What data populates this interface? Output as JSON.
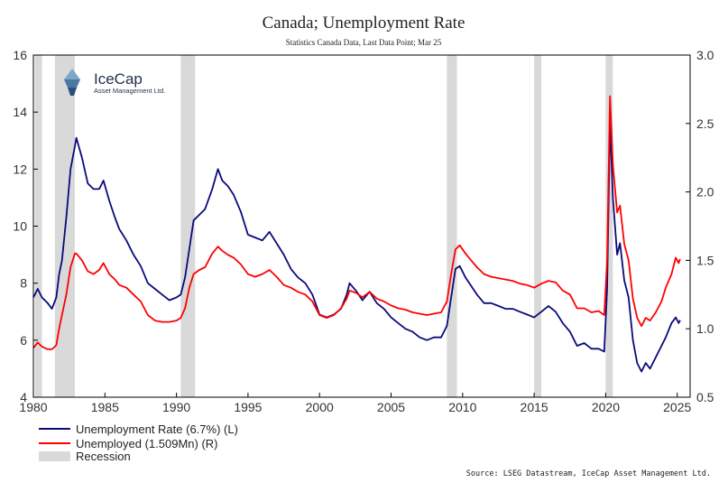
{
  "chart_data": {
    "type": "line",
    "title": "Canada; Unemployment Rate",
    "subtitle": "Statistics Canada Data, Last Data Point; Mar 25",
    "source": "Source: LSEG Datastream, IceCap Asset Management Ltd.",
    "logo": {
      "name": "IceCap",
      "tagline": "Asset Management Ltd."
    },
    "x_ticks": [
      "1980",
      "1985",
      "1990",
      "1995",
      "2000",
      "2005",
      "2010",
      "2015",
      "2020",
      "2025"
    ],
    "xlim": [
      1980,
      2025.9
    ],
    "y_left": {
      "lim": [
        4,
        16
      ],
      "ticks": [
        "4",
        "6",
        "8",
        "10",
        "12",
        "14",
        "16"
      ]
    },
    "y_right": {
      "lim": [
        0.5,
        3.0
      ],
      "ticks": [
        "0.5",
        "1.0",
        "1.5",
        "2.0",
        "2.5",
        "3.0"
      ]
    },
    "recessions": [
      [
        1980.1,
        1980.6
      ],
      [
        1981.5,
        1982.9
      ],
      [
        1990.3,
        1991.3
      ],
      [
        2008.9,
        2009.6
      ],
      [
        2015.0,
        2015.5
      ],
      [
        2020.0,
        2020.5
      ]
    ],
    "legend": [
      {
        "label": "Unemployment Rate (6.7%) (L)",
        "color": "#0a0a7a"
      },
      {
        "label": "Unemployed (1.509Mn) (R)",
        "color": "#ff0000"
      },
      {
        "label": "Recession",
        "color": "#d9d9d9"
      }
    ],
    "series": [
      {
        "name": "Unemployment Rate (6.7%) (L)",
        "axis": "left",
        "color": "#0a0a7a",
        "points": [
          [
            1980.0,
            7.5
          ],
          [
            1980.3,
            7.8
          ],
          [
            1980.6,
            7.5
          ],
          [
            1981.0,
            7.3
          ],
          [
            1981.3,
            7.1
          ],
          [
            1981.6,
            7.5
          ],
          [
            1981.8,
            8.3
          ],
          [
            1982.0,
            8.8
          ],
          [
            1982.3,
            10.3
          ],
          [
            1982.6,
            12.0
          ],
          [
            1982.9,
            12.8
          ],
          [
            1983.0,
            13.1
          ],
          [
            1983.4,
            12.4
          ],
          [
            1983.8,
            11.5
          ],
          [
            1984.2,
            11.3
          ],
          [
            1984.6,
            11.3
          ],
          [
            1984.9,
            11.6
          ],
          [
            1985.3,
            10.9
          ],
          [
            1985.7,
            10.3
          ],
          [
            1986.0,
            9.9
          ],
          [
            1986.5,
            9.5
          ],
          [
            1987.0,
            9.0
          ],
          [
            1987.5,
            8.6
          ],
          [
            1988.0,
            8.0
          ],
          [
            1988.5,
            7.8
          ],
          [
            1989.0,
            7.6
          ],
          [
            1989.5,
            7.4
          ],
          [
            1990.0,
            7.5
          ],
          [
            1990.3,
            7.6
          ],
          [
            1990.6,
            8.2
          ],
          [
            1990.9,
            9.2
          ],
          [
            1991.2,
            10.2
          ],
          [
            1991.6,
            10.4
          ],
          [
            1992.0,
            10.6
          ],
          [
            1992.5,
            11.3
          ],
          [
            1992.9,
            12.0
          ],
          [
            1993.2,
            11.6
          ],
          [
            1993.6,
            11.4
          ],
          [
            1994.0,
            11.1
          ],
          [
            1994.5,
            10.5
          ],
          [
            1995.0,
            9.7
          ],
          [
            1995.5,
            9.6
          ],
          [
            1996.0,
            9.5
          ],
          [
            1996.5,
            9.8
          ],
          [
            1997.0,
            9.4
          ],
          [
            1997.5,
            9.0
          ],
          [
            1998.0,
            8.5
          ],
          [
            1998.5,
            8.2
          ],
          [
            1999.0,
            8.0
          ],
          [
            1999.5,
            7.6
          ],
          [
            2000.0,
            6.9
          ],
          [
            2000.5,
            6.8
          ],
          [
            2001.0,
            6.9
          ],
          [
            2001.5,
            7.1
          ],
          [
            2001.9,
            7.6
          ],
          [
            2002.1,
            8.0
          ],
          [
            2002.6,
            7.7
          ],
          [
            2003.0,
            7.4
          ],
          [
            2003.5,
            7.7
          ],
          [
            2004.0,
            7.3
          ],
          [
            2004.5,
            7.1
          ],
          [
            2005.0,
            6.8
          ],
          [
            2005.5,
            6.6
          ],
          [
            2006.0,
            6.4
          ],
          [
            2006.5,
            6.3
          ],
          [
            2007.0,
            6.1
          ],
          [
            2007.5,
            6.0
          ],
          [
            2008.0,
            6.1
          ],
          [
            2008.5,
            6.1
          ],
          [
            2008.9,
            6.5
          ],
          [
            2009.2,
            7.5
          ],
          [
            2009.5,
            8.5
          ],
          [
            2009.8,
            8.6
          ],
          [
            2010.2,
            8.2
          ],
          [
            2010.6,
            7.9
          ],
          [
            2011.0,
            7.6
          ],
          [
            2011.5,
            7.3
          ],
          [
            2012.0,
            7.3
          ],
          [
            2012.5,
            7.2
          ],
          [
            2013.0,
            7.1
          ],
          [
            2013.5,
            7.1
          ],
          [
            2014.0,
            7.0
          ],
          [
            2014.5,
            6.9
          ],
          [
            2015.0,
            6.8
          ],
          [
            2015.5,
            7.0
          ],
          [
            2016.0,
            7.2
          ],
          [
            2016.5,
            7.0
          ],
          [
            2017.0,
            6.6
          ],
          [
            2017.5,
            6.3
          ],
          [
            2018.0,
            5.8
          ],
          [
            2018.5,
            5.9
          ],
          [
            2019.0,
            5.7
          ],
          [
            2019.5,
            5.7
          ],
          [
            2019.9,
            5.6
          ],
          [
            2020.1,
            7.8
          ],
          [
            2020.3,
            13.7
          ],
          [
            2020.5,
            11.0
          ],
          [
            2020.8,
            9.0
          ],
          [
            2021.0,
            9.4
          ],
          [
            2021.3,
            8.1
          ],
          [
            2021.6,
            7.5
          ],
          [
            2021.9,
            6.0
          ],
          [
            2022.2,
            5.2
          ],
          [
            2022.5,
            4.9
          ],
          [
            2022.8,
            5.2
          ],
          [
            2023.1,
            5.0
          ],
          [
            2023.5,
            5.4
          ],
          [
            2023.9,
            5.8
          ],
          [
            2024.2,
            6.1
          ],
          [
            2024.6,
            6.6
          ],
          [
            2024.9,
            6.8
          ],
          [
            2025.1,
            6.6
          ],
          [
            2025.2,
            6.7
          ]
        ]
      },
      {
        "name": "Unemployed (1.509Mn) (R)",
        "axis": "right",
        "color": "#ff0000",
        "points": [
          [
            1980.0,
            0.86
          ],
          [
            1980.3,
            0.9
          ],
          [
            1980.6,
            0.87
          ],
          [
            1981.0,
            0.85
          ],
          [
            1981.3,
            0.85
          ],
          [
            1981.6,
            0.88
          ],
          [
            1981.8,
            1.0
          ],
          [
            1982.0,
            1.1
          ],
          [
            1982.3,
            1.25
          ],
          [
            1982.6,
            1.45
          ],
          [
            1982.9,
            1.55
          ],
          [
            1983.0,
            1.55
          ],
          [
            1983.4,
            1.5
          ],
          [
            1983.8,
            1.42
          ],
          [
            1984.2,
            1.4
          ],
          [
            1984.6,
            1.43
          ],
          [
            1984.9,
            1.48
          ],
          [
            1985.3,
            1.4
          ],
          [
            1985.7,
            1.36
          ],
          [
            1986.0,
            1.32
          ],
          [
            1986.5,
            1.3
          ],
          [
            1987.0,
            1.25
          ],
          [
            1987.5,
            1.2
          ],
          [
            1988.0,
            1.1
          ],
          [
            1988.5,
            1.06
          ],
          [
            1989.0,
            1.05
          ],
          [
            1989.5,
            1.05
          ],
          [
            1990.0,
            1.06
          ],
          [
            1990.3,
            1.08
          ],
          [
            1990.6,
            1.15
          ],
          [
            1990.9,
            1.3
          ],
          [
            1991.2,
            1.4
          ],
          [
            1991.6,
            1.43
          ],
          [
            1992.0,
            1.45
          ],
          [
            1992.5,
            1.55
          ],
          [
            1992.9,
            1.6
          ],
          [
            1993.2,
            1.57
          ],
          [
            1993.6,
            1.54
          ],
          [
            1994.0,
            1.52
          ],
          [
            1994.5,
            1.47
          ],
          [
            1995.0,
            1.4
          ],
          [
            1995.5,
            1.38
          ],
          [
            1996.0,
            1.4
          ],
          [
            1996.5,
            1.43
          ],
          [
            1997.0,
            1.38
          ],
          [
            1997.5,
            1.32
          ],
          [
            1998.0,
            1.3
          ],
          [
            1998.5,
            1.27
          ],
          [
            1999.0,
            1.25
          ],
          [
            1999.5,
            1.2
          ],
          [
            2000.0,
            1.1
          ],
          [
            2000.5,
            1.08
          ],
          [
            2001.0,
            1.1
          ],
          [
            2001.5,
            1.15
          ],
          [
            2001.9,
            1.22
          ],
          [
            2002.1,
            1.28
          ],
          [
            2002.6,
            1.26
          ],
          [
            2003.0,
            1.23
          ],
          [
            2003.5,
            1.27
          ],
          [
            2004.0,
            1.22
          ],
          [
            2004.5,
            1.2
          ],
          [
            2005.0,
            1.17
          ],
          [
            2005.5,
            1.15
          ],
          [
            2006.0,
            1.14
          ],
          [
            2006.5,
            1.12
          ],
          [
            2007.0,
            1.11
          ],
          [
            2007.5,
            1.1
          ],
          [
            2008.0,
            1.11
          ],
          [
            2008.5,
            1.12
          ],
          [
            2008.9,
            1.2
          ],
          [
            2009.2,
            1.4
          ],
          [
            2009.5,
            1.58
          ],
          [
            2009.8,
            1.61
          ],
          [
            2010.2,
            1.55
          ],
          [
            2010.6,
            1.5
          ],
          [
            2011.0,
            1.45
          ],
          [
            2011.5,
            1.4
          ],
          [
            2012.0,
            1.38
          ],
          [
            2012.5,
            1.37
          ],
          [
            2013.0,
            1.36
          ],
          [
            2013.5,
            1.35
          ],
          [
            2014.0,
            1.33
          ],
          [
            2014.5,
            1.32
          ],
          [
            2015.0,
            1.3
          ],
          [
            2015.5,
            1.33
          ],
          [
            2016.0,
            1.35
          ],
          [
            2016.5,
            1.34
          ],
          [
            2017.0,
            1.28
          ],
          [
            2017.5,
            1.25
          ],
          [
            2018.0,
            1.15
          ],
          [
            2018.5,
            1.15
          ],
          [
            2019.0,
            1.12
          ],
          [
            2019.5,
            1.13
          ],
          [
            2019.9,
            1.1
          ],
          [
            2020.1,
            1.5
          ],
          [
            2020.3,
            2.7
          ],
          [
            2020.5,
            2.2
          ],
          [
            2020.8,
            1.85
          ],
          [
            2021.0,
            1.9
          ],
          [
            2021.3,
            1.62
          ],
          [
            2021.6,
            1.5
          ],
          [
            2021.9,
            1.22
          ],
          [
            2022.2,
            1.08
          ],
          [
            2022.5,
            1.02
          ],
          [
            2022.8,
            1.08
          ],
          [
            2023.1,
            1.06
          ],
          [
            2023.5,
            1.12
          ],
          [
            2023.9,
            1.2
          ],
          [
            2024.2,
            1.3
          ],
          [
            2024.6,
            1.4
          ],
          [
            2024.9,
            1.52
          ],
          [
            2025.1,
            1.48
          ],
          [
            2025.2,
            1.51
          ]
        ]
      }
    ]
  }
}
